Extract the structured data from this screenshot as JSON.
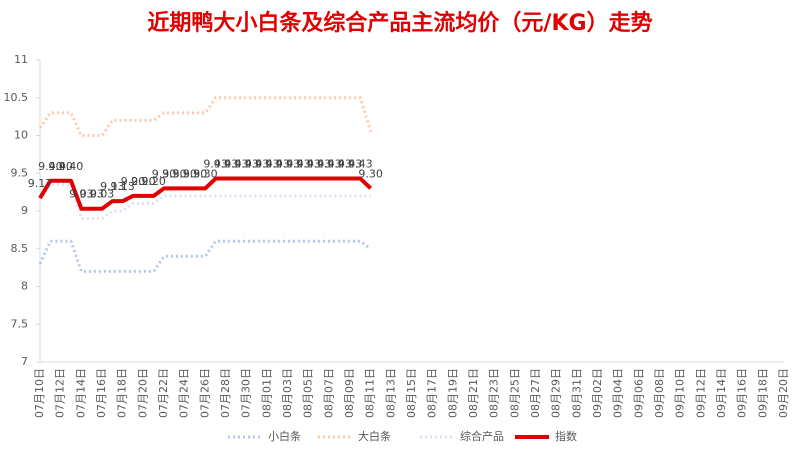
{
  "chart_data": {
    "type": "line",
    "title": "近期鸭大小白条及综合产品主流均价（元/KG）走势",
    "categories": [
      "07月10日",
      null,
      "07月12日",
      null,
      "07月14日",
      null,
      "07月16日",
      null,
      "07月18日",
      null,
      "07月20日",
      null,
      "07月22日",
      null,
      "07月24日",
      null,
      "07月26日",
      null,
      "07月28日",
      null,
      "07月30日",
      null,
      "08月01日",
      null,
      "08月03日",
      null,
      "08月05日",
      null,
      "08月07日",
      null,
      "08月09日",
      null,
      "08月11日",
      null,
      "08月13日",
      null,
      "08月15日",
      null,
      "08月17日",
      null,
      "08月19日",
      null,
      "08月21日",
      null,
      "08月23日",
      null,
      "08月25日",
      null,
      "08月27日",
      null,
      "08月29日",
      null,
      "08月31日",
      null,
      "09月02日",
      null,
      "09月04日",
      null,
      "09月06日",
      null,
      "09月08日",
      null,
      "09月10日",
      null,
      "09月12日",
      null,
      "09月14日",
      null,
      "09月16日",
      null,
      "09月18日",
      null,
      "09月20日"
    ],
    "series": [
      {
        "name": "小白条",
        "color": "#b4c7e7",
        "style": "dotted",
        "values": [
          8.3,
          8.6,
          8.6,
          8.6,
          8.2,
          8.2,
          8.2,
          8.2,
          8.2,
          8.2,
          8.2,
          8.2,
          8.4,
          8.4,
          8.4,
          8.4,
          8.4,
          8.6,
          8.6,
          8.6,
          8.6,
          8.6,
          8.6,
          8.6,
          8.6,
          8.6,
          8.6,
          8.6,
          8.6,
          8.6,
          8.6,
          8.6,
          8.5,
          null,
          null,
          null,
          null,
          null,
          null,
          null,
          null,
          null,
          null,
          null,
          null,
          null,
          null,
          null,
          null,
          null,
          null,
          null,
          null,
          null,
          null,
          null,
          null,
          null,
          null,
          null,
          null,
          null,
          null,
          null,
          null,
          null,
          null,
          null,
          null,
          null,
          null,
          null,
          null
        ]
      },
      {
        "name": "大白条",
        "color": "#f8cbad",
        "style": "dotted",
        "values": [
          10.1,
          10.3,
          10.3,
          10.3,
          10,
          10,
          10,
          10.2,
          10.2,
          10.2,
          10.2,
          10.2,
          10.3,
          10.3,
          10.3,
          10.3,
          10.3,
          10.5,
          10.5,
          10.5,
          10.5,
          10.5,
          10.5,
          10.5,
          10.5,
          10.5,
          10.5,
          10.5,
          10.5,
          10.5,
          10.5,
          10.5,
          10.05,
          null,
          null,
          null,
          null,
          null,
          null,
          null,
          null,
          null,
          null,
          null,
          null,
          null,
          null,
          null,
          null,
          null,
          null,
          null,
          null,
          null,
          null,
          null,
          null,
          null,
          null,
          null,
          null,
          null,
          null,
          null,
          null,
          null,
          null,
          null,
          null,
          null,
          null,
          null,
          null
        ]
      },
      {
        "name": "综合产品",
        "color": "#dae3f3",
        "style": "dotted",
        "values": [
          9.15,
          9.35,
          9.35,
          9.35,
          8.9,
          8.9,
          8.9,
          9,
          9,
          9.1,
          9.1,
          9.1,
          9.2,
          9.2,
          9.2,
          9.2,
          9.2,
          9.2,
          9.2,
          9.2,
          9.2,
          9.2,
          9.2,
          9.2,
          9.2,
          9.2,
          9.2,
          9.2,
          9.2,
          9.2,
          9.2,
          9.2,
          9.2,
          null,
          null,
          null,
          null,
          null,
          null,
          null,
          null,
          null,
          null,
          null,
          null,
          null,
          null,
          null,
          null,
          null,
          null,
          null,
          null,
          null,
          null,
          null,
          null,
          null,
          null,
          null,
          null,
          null,
          null,
          null,
          null,
          null,
          null,
          null,
          null,
          null,
          null,
          null,
          null
        ]
      },
      {
        "name": "指数",
        "color": "#e00000",
        "style": "solid",
        "values": [
          9.17,
          9.4,
          9.4,
          9.4,
          9.03,
          9.03,
          9.03,
          9.13,
          9.13,
          9.2,
          9.2,
          9.2,
          9.3,
          9.3,
          9.3,
          9.3,
          9.3,
          9.43,
          9.43,
          9.43,
          9.43,
          9.43,
          9.43,
          9.43,
          9.43,
          9.43,
          9.43,
          9.43,
          9.43,
          9.43,
          9.43,
          9.43,
          9.3,
          null,
          null,
          null,
          null,
          null,
          null,
          null,
          null,
          null,
          null,
          null,
          null,
          null,
          null,
          null,
          null,
          null,
          null,
          null,
          null,
          null,
          null,
          null,
          null,
          null,
          null,
          null,
          null,
          null,
          null,
          null,
          null,
          null,
          null,
          null,
          null,
          null,
          null,
          null,
          null
        ],
        "value_labels": [
          "9.17",
          "9.40",
          "9.40",
          "9.40",
          "9.03",
          "9.03",
          "9.03",
          "9.13",
          "9.13",
          "9.20",
          "9.20",
          "9.20",
          "9.30",
          "9.30",
          "9.30",
          "9.30",
          "9.30",
          "9.43",
          "9.43",
          "9.43",
          "9.43",
          "9.43",
          "9.43",
          "9.43",
          "9.43",
          "9.43",
          "9.43",
          "9.43",
          "9.43",
          "9.43",
          "9.43",
          "9.43",
          "9.30",
          null,
          null,
          null,
          null,
          null,
          null,
          null,
          null,
          null,
          null,
          null,
          null,
          null,
          null,
          null,
          null,
          null,
          null,
          null,
          null,
          null,
          null,
          null,
          null,
          null,
          null,
          null,
          null,
          null,
          null,
          null,
          null,
          null,
          null,
          null,
          null,
          null,
          null,
          null,
          null
        ]
      }
    ],
    "ylim": [
      7,
      11
    ],
    "yticks": [
      7,
      {
        "value": 7.5,
        "label": "7.5"
      },
      8,
      {
        "value": 8.5,
        "label": "8.5"
      },
      9,
      {
        "value": 9.5,
        "label": "9.5"
      },
      10,
      {
        "value": 10.5,
        "label": "10.5"
      },
      11
    ],
    "grid": false,
    "legend": "bottom"
  }
}
